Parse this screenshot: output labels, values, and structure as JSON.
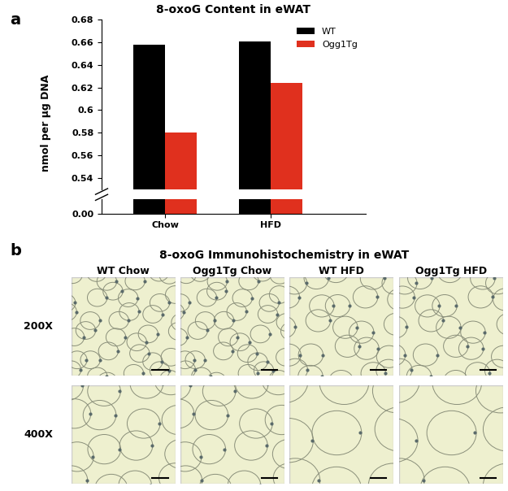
{
  "chart_data": {
    "type": "bar",
    "panel_label": "a",
    "title": "8-oxoG Content in eWAT",
    "y_label": "nmol per µg DNA",
    "categories": [
      "Chow",
      "HFD"
    ],
    "series": [
      {
        "name": "WT",
        "color": "#000000",
        "values": [
          0.658,
          0.661
        ]
      },
      {
        "name": "Ogg1Tg",
        "color": "#e0301e",
        "values": [
          0.58,
          0.624
        ]
      }
    ],
    "ylim": [
      0,
      0.68
    ],
    "y_break": [
      0.005,
      0.53
    ],
    "yticks": [
      {
        "value": 0.0,
        "label": "0.00"
      },
      0.54,
      0.56,
      0.58,
      0.6,
      0.62,
      0.64,
      0.66,
      0.68
    ],
    "legend": "upper right",
    "grid": false
  },
  "image_panel": {
    "panel_label": "b",
    "title": "8-oxoG Immunohistochemistry in eWAT",
    "columns": [
      "WT Chow",
      "Ogg1Tg Chow",
      "WT HFD",
      "Ogg1Tg HFD"
    ],
    "rows": [
      "200X",
      "400X"
    ]
  }
}
